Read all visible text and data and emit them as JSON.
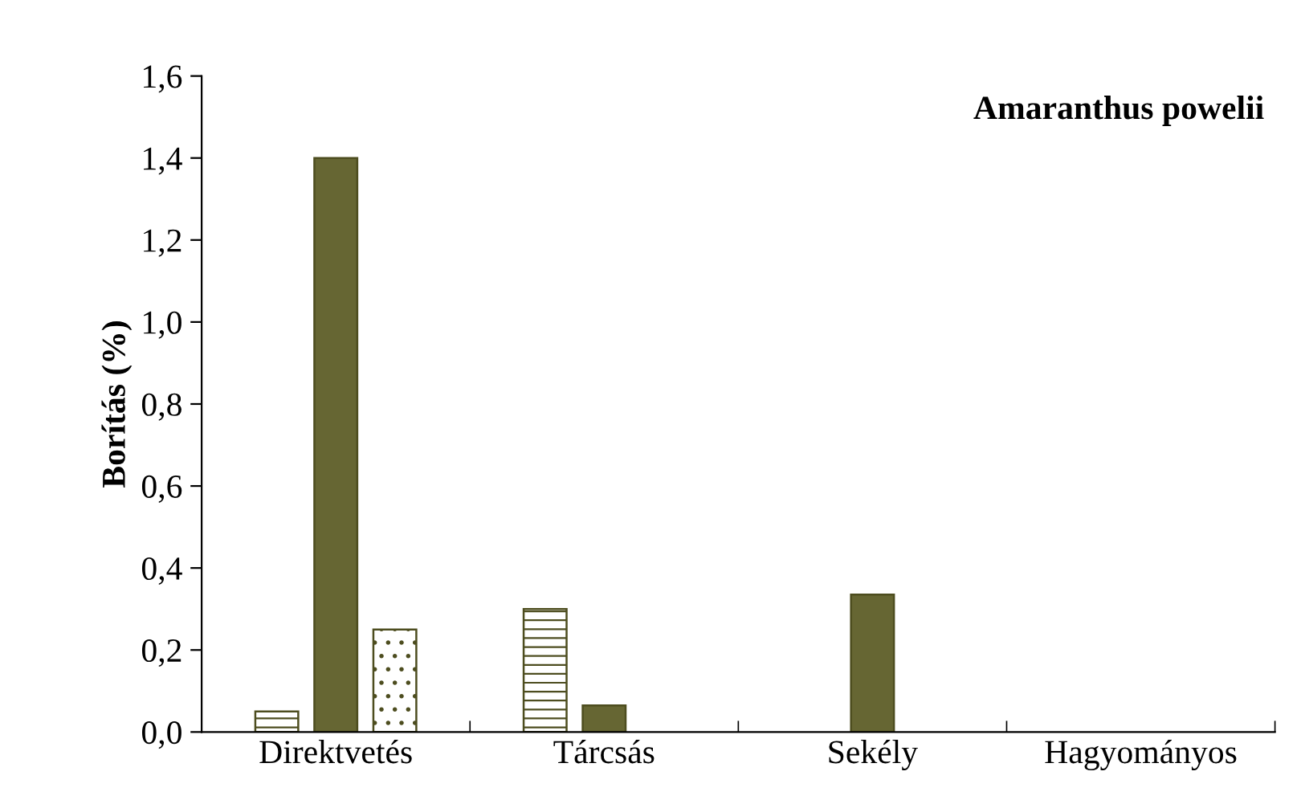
{
  "chart_data": {
    "type": "bar",
    "title": "Amaranthus powelii",
    "ylabel": "Borítás (%)",
    "categories": [
      "Direktvetés",
      "Tárcsás",
      "Sekély",
      "Hagyományos"
    ],
    "series": [
      {
        "color": "#4d4d1f",
        "values": [
          0.05,
          0.3,
          0,
          0
        ]
      },
      {
        "color": "#666633",
        "values": [
          1.4,
          0.065,
          0.335,
          0
        ]
      },
      {
        "color": "#4d4d1f",
        "values": [
          0.25,
          0,
          0,
          0
        ]
      }
    ],
    "ylim": [
      0,
      1.6
    ],
    "yticks": [
      {
        "value": 0,
        "label": "0,0"
      },
      {
        "value": 0.2,
        "label": "0,2"
      },
      {
        "value": 0.4,
        "label": "0,4"
      },
      {
        "value": 0.6,
        "label": "0,6"
      },
      {
        "value": 0.8,
        "label": "0,8"
      },
      {
        "value": 1.0,
        "label": "1,0"
      },
      {
        "value": 1.2,
        "label": "1,2"
      },
      {
        "value": 1.4,
        "label": "1,4"
      },
      {
        "value": 1.6,
        "label": "1,6"
      }
    ],
    "grid": false,
    "legend": false
  }
}
